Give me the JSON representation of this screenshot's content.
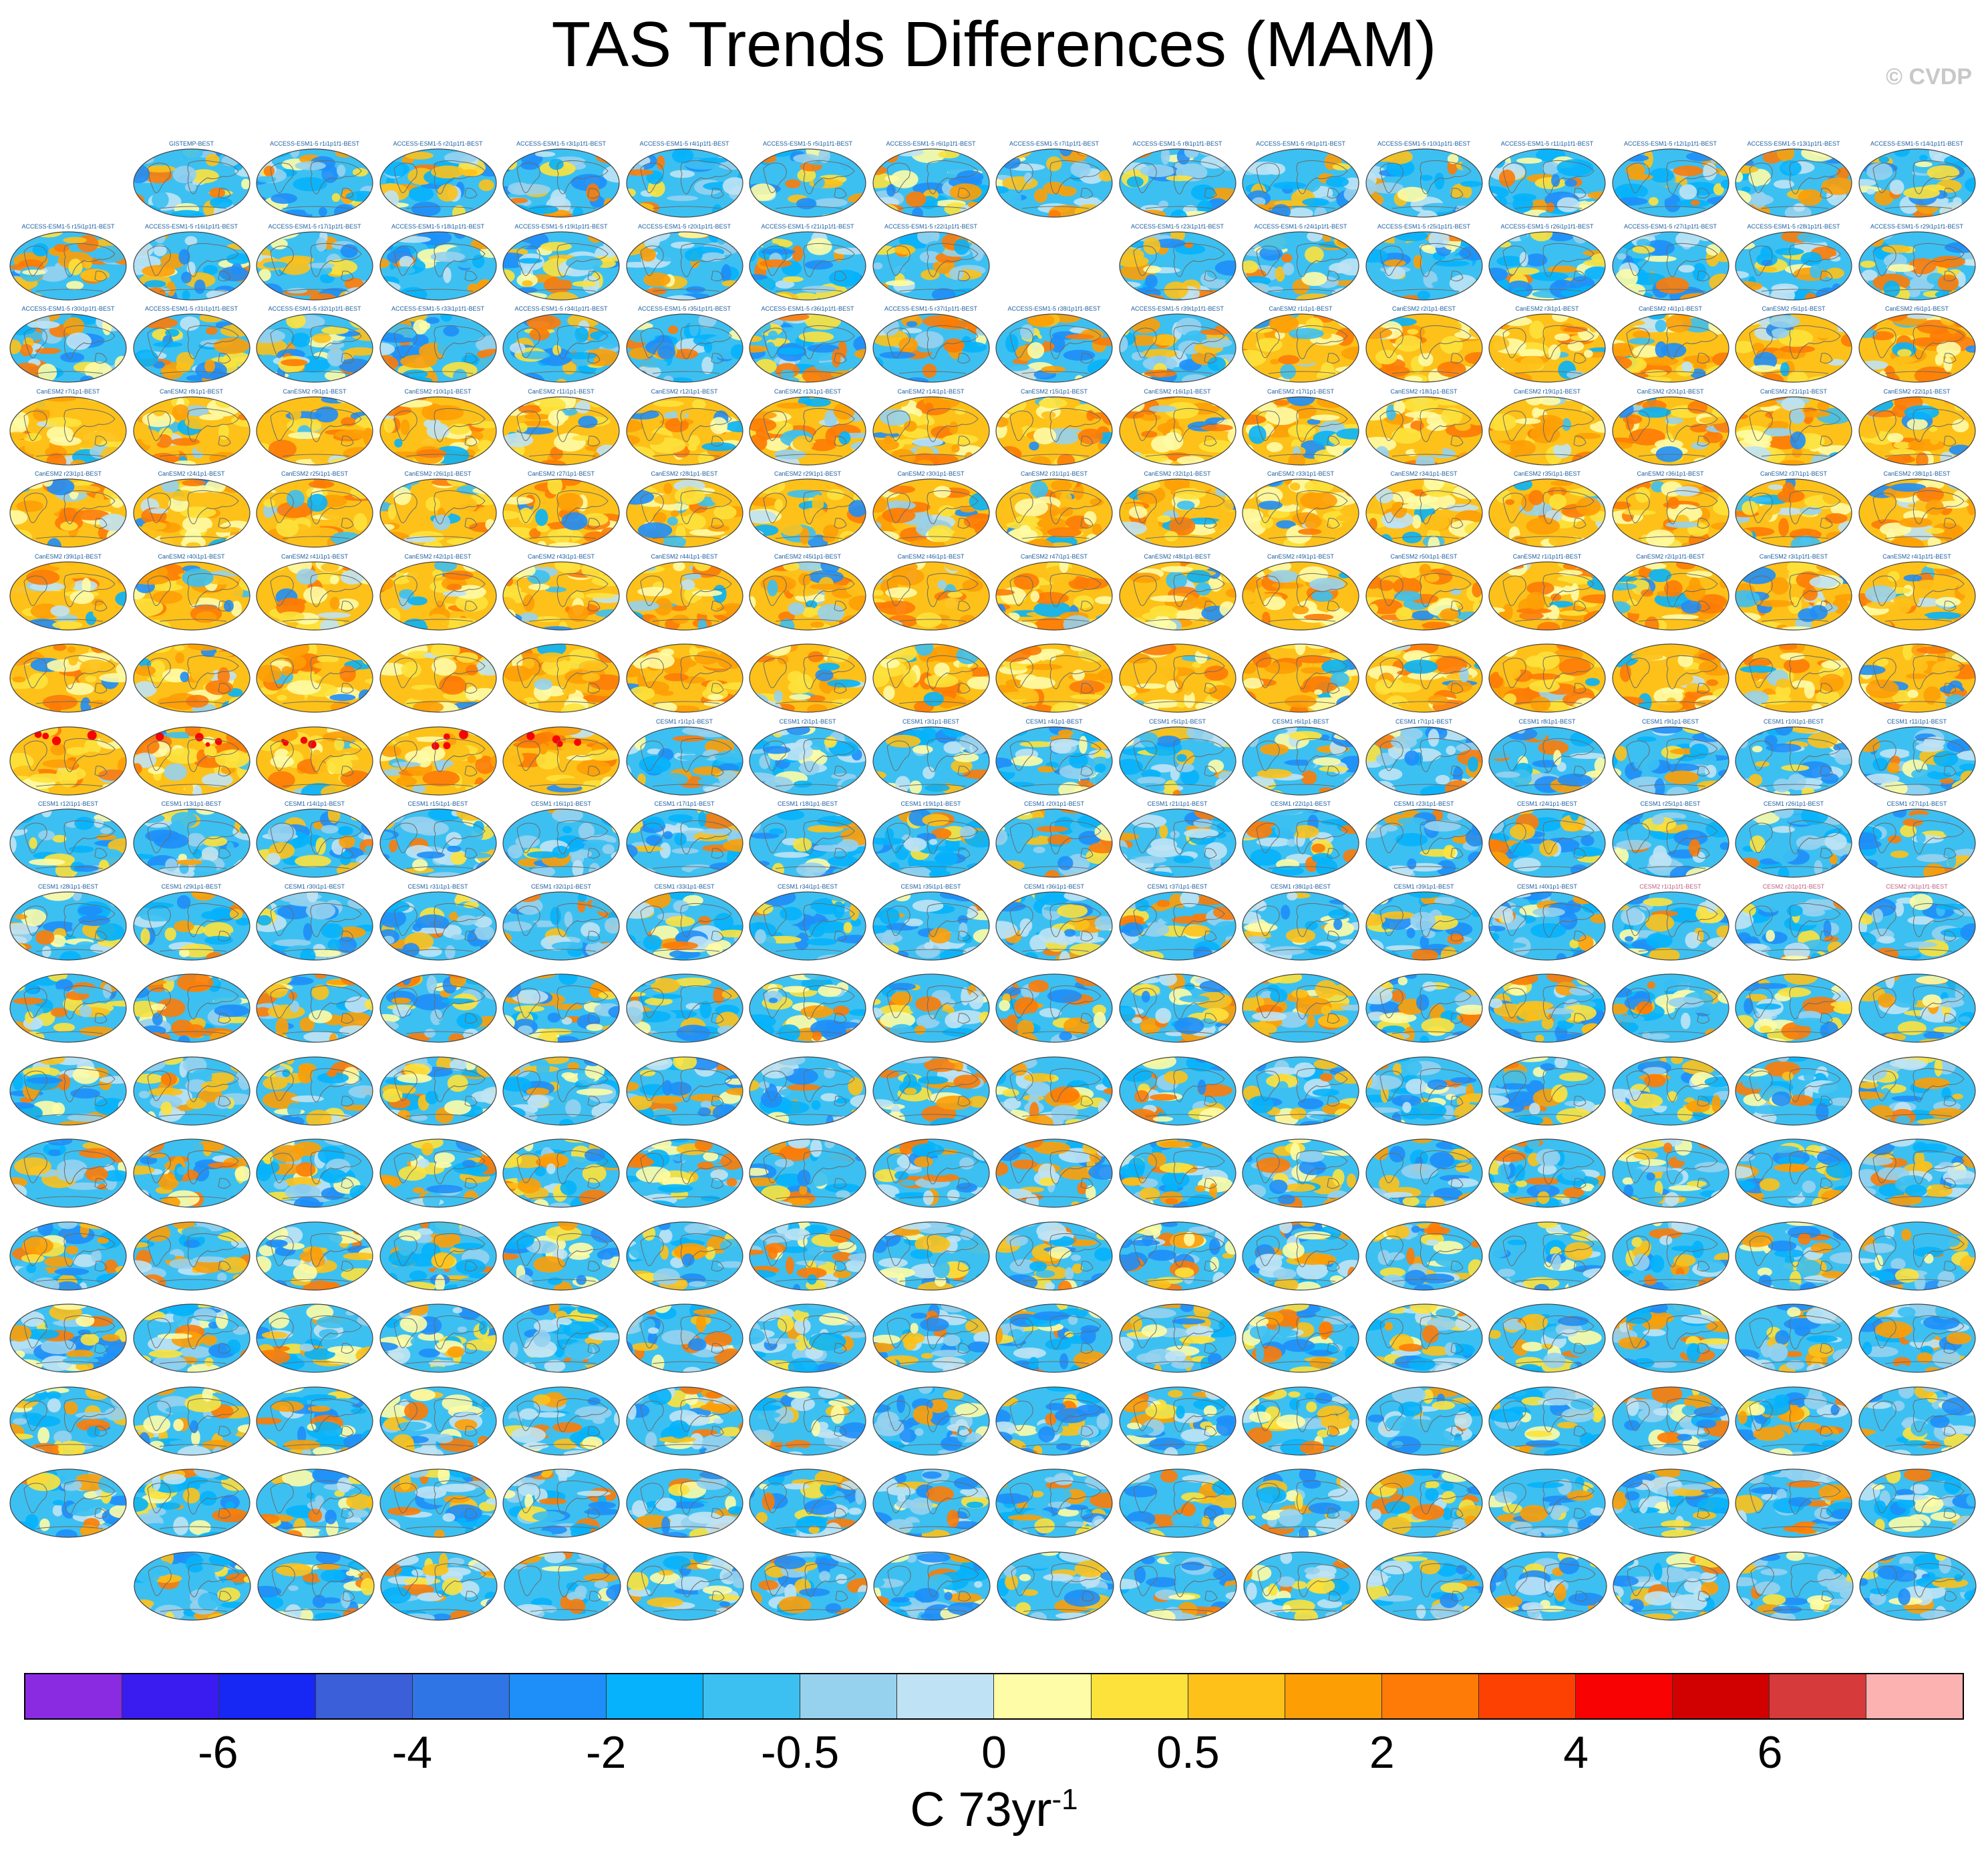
{
  "title": "TAS Trends Differences (MAM)",
  "watermark": "© CVDP",
  "colorbar": {
    "colors": [
      "#8a2be2",
      "#3a1cf0",
      "#1727f4",
      "#3a5fd8",
      "#3075e6",
      "#1e8ef8",
      "#05b2fb",
      "#3cc0f2",
      "#96d2ee",
      "#bfe3f4",
      "#fefca6",
      "#fde23c",
      "#fdc119",
      "#fd9e05",
      "#fd7b06",
      "#fc4103",
      "#f90204",
      "#d10101",
      "#d63a3a",
      "#fdb2b2"
    ],
    "tick_labels": [
      {
        "text": "-6",
        "boundary": 2
      },
      {
        "text": "-4",
        "boundary": 4
      },
      {
        "text": "-2",
        "boundary": 6
      },
      {
        "text": "-0.5",
        "boundary": 8
      },
      {
        "text": "0",
        "boundary": 10
      },
      {
        "text": "0.5",
        "boundary": 12
      },
      {
        "text": "2",
        "boundary": 14
      },
      {
        "text": "4",
        "boundary": 16
      },
      {
        "text": "6",
        "boundary": 18
      }
    ],
    "units_main": "C 73yr",
    "units_sup": "-1"
  },
  "panels": {
    "grid_columns": 16,
    "rows": [
      {
        "skip": [
          0
        ],
        "labels": [
          "GISTEMP-BEST",
          "ACCESS-ESM1-5 r1i1p1f1-BEST",
          "ACCESS-ESM1-5 r2i1p1f1-BEST",
          "ACCESS-ESM1-5 r3i1p1f1-BEST",
          "ACCESS-ESM1-5 r4i1p1f1-BEST",
          "ACCESS-ESM1-5 r5i1p1f1-BEST",
          "ACCESS-ESM1-5 r6i1p1f1-BEST",
          "ACCESS-ESM1-5 r7i1p1f1-BEST",
          "ACCESS-ESM1-5 r8i1p1f1-BEST",
          "ACCESS-ESM1-5 r9i1p1f1-BEST",
          "ACCESS-ESM1-5 r10i1p1f1-BEST",
          "ACCESS-ESM1-5 r11i1p1f1-BEST",
          "ACCESS-ESM1-5 r12i1p1f1-BEST",
          "ACCESS-ESM1-5 r13i1p1f1-BEST",
          "ACCESS-ESM1-5 r14i1p1f1-BEST"
        ],
        "warm": 0.35
      },
      {
        "skip": [
          8
        ],
        "labels": [
          "ACCESS-ESM1-5 r15i1p1f1-BEST",
          "ACCESS-ESM1-5 r16i1p1f1-BEST",
          "ACCESS-ESM1-5 r17i1p1f1-BEST",
          "ACCESS-ESM1-5 r18i1p1f1-BEST",
          "ACCESS-ESM1-5 r19i1p1f1-BEST",
          "ACCESS-ESM1-5 r20i1p1f1-BEST",
          "ACCESS-ESM1-5 r21i1p1f1-BEST",
          "ACCESS-ESM1-5 r22i1p1f1-BEST",
          "ACCESS-ESM1-5 r23i1p1f1-BEST",
          "ACCESS-ESM1-5 r24i1p1f1-BEST",
          "ACCESS-ESM1-5 r25i1p1f1-BEST",
          "ACCESS-ESM1-5 r26i1p1f1-BEST",
          "ACCESS-ESM1-5 r27i1p1f1-BEST",
          "ACCESS-ESM1-5 r28i1p1f1-BEST",
          "ACCESS-ESM1-5 r29i1p1f1-BEST"
        ],
        "warm": 0.4
      },
      {
        "skip": [],
        "labels": [
          "ACCESS-ESM1-5 r30i1p1f1-BEST",
          "ACCESS-ESM1-5 r31i1p1f1-BEST",
          "ACCESS-ESM1-5 r32i1p1f1-BEST",
          "ACCESS-ESM1-5 r33i1p1f1-BEST",
          "ACCESS-ESM1-5 r34i1p1f1-BEST",
          "ACCESS-ESM1-5 r35i1p1f1-BEST",
          "ACCESS-ESM1-5 r36i1p1f1-BEST",
          "ACCESS-ESM1-5 r37i1p1f1-BEST",
          "ACCESS-ESM1-5 r38i1p1f1-BEST",
          "ACCESS-ESM1-5 r39i1p1f1-BEST",
          "CanESM2 r1i1p1-BEST",
          "CanESM2 r2i1p1-BEST",
          "CanESM2 r3i1p1-BEST",
          "CanESM2 r4i1p1-BEST",
          "CanESM2 r5i1p1-BEST",
          "CanESM2 r6i1p1-BEST"
        ],
        "warm": 0.45,
        "warm_from": 10
      },
      {
        "skip": [],
        "labels": [
          "CanESM2 r7i1p1-BEST",
          "CanESM2 r8i1p1-BEST",
          "CanESM2 r9i1p1-BEST",
          "CanESM2 r10i1p1-BEST",
          "CanESM2 r11i1p1-BEST",
          "CanESM2 r12i1p1-BEST",
          "CanESM2 r13i1p1-BEST",
          "CanESM2 r14i1p1-BEST",
          "CanESM2 r15i1p1-BEST",
          "CanESM2 r16i1p1-BEST",
          "CanESM2 r17i1p1-BEST",
          "CanESM2 r18i1p1-BEST",
          "CanESM2 r19i1p1-BEST",
          "CanESM2 r20i1p1-BEST",
          "CanESM2 r21i1p1-BEST",
          "CanESM2 r22i1p1-BEST"
        ],
        "warm": 0.8
      },
      {
        "skip": [],
        "labels": [
          "CanESM2 r23i1p1-BEST",
          "CanESM2 r24i1p1-BEST",
          "CanESM2 r25i1p1-BEST",
          "CanESM2 r26i1p1-BEST",
          "CanESM2 r27i1p1-BEST",
          "CanESM2 r28i1p1-BEST",
          "CanESM2 r29i1p1-BEST",
          "CanESM2 r30i1p1-BEST",
          "CanESM2 r31i1p1-BEST",
          "CanESM2 r32i1p1-BEST",
          "CanESM2 r33i1p1-BEST",
          "CanESM2 r34i1p1-BEST",
          "CanESM2 r35i1p1-BEST",
          "CanESM2 r36i1p1-BEST",
          "CanESM2 r37i1p1-BEST",
          "CanESM2 r38i1p1-BEST"
        ],
        "warm": 0.8
      },
      {
        "skip": [],
        "labels": [
          "CanESM2 r39i1p1-BEST",
          "CanESM2 r40i1p1-BEST",
          "CanESM2 r41i1p1-BEST",
          "CanESM2 r42i1p1-BEST",
          "CanESM2 r43i1p1-BEST",
          "CanESM2 r44i1p1-BEST",
          "CanESM2 r45i1p1-BEST",
          "CanESM2 r46i1p1-BEST",
          "CanESM2 r47i1p1-BEST",
          "CanESM2 r48i1p1-BEST",
          "CanESM2 r49i1p1-BEST",
          "CanESM2 r50i1p1-BEST",
          "CanESM2 r1i1p1f1-BEST",
          "CanESM2 r2i1p1f1-BEST",
          "CanESM2 r3i1p1f1-BEST",
          "CanESM2 r4i1p1f1-BEST"
        ],
        "warm": 0.78
      },
      {
        "skip": [],
        "labels": [
          "",
          "",
          "",
          "",
          "",
          "",
          "",
          "",
          "",
          "",
          "",
          "",
          "",
          "",
          "",
          ""
        ],
        "warm": 0.88
      },
      {
        "skip": [],
        "labels": [
          "",
          "",
          "",
          "",
          "",
          "CESM1 r1i1p1-BEST",
          "CESM1 r2i1p1-BEST",
          "CESM1 r3i1p1-BEST",
          "CESM1 r4i1p1-BEST",
          "CESM1 r5i1p1-BEST",
          "CESM1 r6i1p1-BEST",
          "CESM1 r7i1p1-BEST",
          "CESM1 r8i1p1-BEST",
          "CESM1 r9i1p1-BEST",
          "CESM1 r10i1p1-BEST",
          "CESM1 r11i1p1-BEST"
        ],
        "warm": 0.3,
        "hot_until": 5
      },
      {
        "skip": [],
        "labels": [
          "CESM1 r12i1p1-BEST",
          "CESM1 r13i1p1-BEST",
          "CESM1 r14i1p1-BEST",
          "CESM1 r15i1p1-BEST",
          "CESM1 r16i1p1-BEST",
          "CESM1 r17i1p1-BEST",
          "CESM1 r18i1p1-BEST",
          "CESM1 r19i1p1-BEST",
          "CESM1 r20i1p1-BEST",
          "CESM1 r21i1p1-BEST",
          "CESM1 r22i1p1-BEST",
          "CESM1 r23i1p1-BEST",
          "CESM1 r24i1p1-BEST",
          "CESM1 r25i1p1-BEST",
          "CESM1 r26i1p1-BEST",
          "CESM1 r27i1p1-BEST"
        ],
        "warm": 0.28
      },
      {
        "skip": [],
        "labels": [
          "CESM1 r28i1p1-BEST",
          "CESM1 r29i1p1-BEST",
          "CESM1 r30i1p1-BEST",
          "CESM1 r31i1p1-BEST",
          "CESM1 r32i1p1-BEST",
          "CESM1 r33i1p1-BEST",
          "CESM1 r34i1p1-BEST",
          "CESM1 r35i1p1-BEST",
          "CESM1 r36i1p1-BEST",
          "CESM1 r37i1p1-BEST",
          "CESM1 r38i1p1-BEST",
          "CESM1 r39i1p1-BEST",
          "CESM1 r40i1p1-BEST",
          "CESM2 r1i1p1f1-BEST",
          "CESM2 r2i1p1f1-BEST",
          "CESM2 r3i1p1f1-BEST"
        ],
        "warm": 0.3
      },
      {
        "skip": [],
        "labels": [
          "",
          "",
          "",
          "",
          "",
          "",
          "",
          "",
          "",
          "",
          "",
          "",
          "",
          "",
          "",
          ""
        ],
        "warm": 0.5
      },
      {
        "skip": [],
        "labels": [
          "",
          "",
          "",
          "",
          "",
          "",
          "",
          "",
          "",
          "",
          "",
          "",
          "",
          "",
          "",
          ""
        ],
        "warm": 0.45
      },
      {
        "skip": [],
        "labels": [
          "",
          "",
          "",
          "",
          "",
          "",
          "",
          "",
          "",
          "",
          "",
          "",
          "",
          "",
          "",
          ""
        ],
        "warm": 0.45
      },
      {
        "skip": [],
        "labels": [
          "",
          "",
          "",
          "",
          "",
          "",
          "",
          "",
          "",
          "",
          "",
          "",
          "",
          "",
          "",
          ""
        ],
        "warm": 0.42
      },
      {
        "skip": [],
        "labels": [
          "",
          "",
          "",
          "",
          "",
          "",
          "",
          "",
          "",
          "",
          "",
          "",
          "",
          "",
          "",
          ""
        ],
        "warm": 0.4
      },
      {
        "skip": [],
        "labels": [
          "",
          "",
          "",
          "",
          "",
          "",
          "",
          "",
          "",
          "",
          "",
          "",
          "",
          "",
          "",
          ""
        ],
        "warm": 0.38
      },
      {
        "skip": [],
        "labels": [
          "",
          "",
          "",
          "",
          "",
          "",
          "",
          "",
          "",
          "",
          "",
          "",
          "",
          "",
          "",
          ""
        ],
        "warm": 0.35
      },
      {
        "skip": [],
        "offset_half": true,
        "count": 15,
        "labels": [
          "",
          "",
          "",
          "",
          "",
          "",
          "",
          "",
          "",
          "",
          "",
          "",
          "",
          "",
          ""
        ],
        "warm": 0.32
      }
    ]
  }
}
